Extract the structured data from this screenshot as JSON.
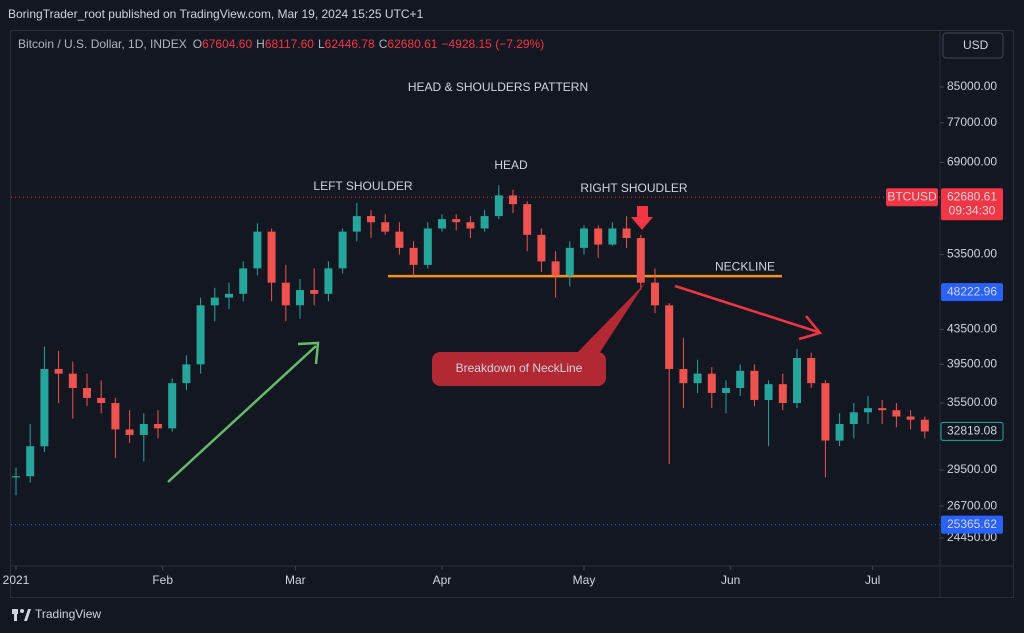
{
  "header": {
    "publisher": "BoringTrader_root published on TradingView.com, Mar 19, 2024 15:25 UTC+1"
  },
  "footer": {
    "brand": "TradingView"
  },
  "chart_data": {
    "type": "candlestick",
    "title": "HEAD & SHOULDERS PATTERN",
    "symbol": "Bitcoin / U.S. Dollar, 1D, INDEX",
    "ohlc_legend": [
      {
        "key": "O",
        "value": "67604.60"
      },
      {
        "key": "H",
        "value": "68117.60"
      },
      {
        "key": "L",
        "value": "62446.78"
      },
      {
        "key": "C",
        "value": "62680.61"
      },
      {
        "key": "",
        "value": "−4928.15 (−7.29%)"
      }
    ],
    "currency": "USD",
    "up_color": "#26a69a",
    "down_color": "#ef5350",
    "log_scale": true,
    "candles": {
      "open": [
        28900,
        29000,
        31500,
        39000,
        38500,
        37000,
        36000,
        35500,
        33000,
        32500,
        33500,
        33100,
        37500,
        39500,
        46500,
        47500,
        48000,
        51500,
        57000,
        49500,
        46500,
        48500,
        48000,
        51500,
        57000,
        59500,
        58500,
        57000,
        54500,
        52000,
        57500,
        59000,
        58500,
        57500,
        59500,
        63000,
        61500,
        56500,
        52500,
        50500,
        54500,
        57500,
        55000,
        57500,
        56000,
        49500,
        46500,
        39000,
        37500,
        38500,
        36500,
        37000,
        38800,
        35800,
        37400,
        35500,
        40200,
        37500,
        32000,
        33500,
        34600,
        35000,
        34800,
        34200,
        33900
      ],
      "high": [
        29700,
        33500,
        41500,
        41000,
        39800,
        38500,
        37800,
        36000,
        34800,
        34500,
        34800,
        38000,
        40500,
        47500,
        48800,
        49500,
        52500,
        58300,
        57500,
        52000,
        50000,
        51500,
        52500,
        57500,
        61700,
        60500,
        59800,
        58500,
        55500,
        58500,
        59800,
        59800,
        59500,
        60500,
        64800,
        64000,
        62000,
        57500,
        54000,
        55500,
        58000,
        58000,
        58500,
        59500,
        56500,
        51500,
        46800,
        42500,
        40000,
        39200,
        37800,
        39500,
        39500,
        37800,
        38500,
        41200,
        40800,
        37800,
        34500,
        35500,
        36200,
        35800,
        35500,
        34800,
        34200
      ],
      "low": [
        27500,
        28500,
        31000,
        35500,
        34000,
        35200,
        34500,
        30500,
        31800,
        30200,
        32200,
        32800,
        36800,
        38500,
        44500,
        46000,
        47000,
        50500,
        47000,
        44500,
        44800,
        46500,
        47000,
        50800,
        55500,
        56000,
        56500,
        53500,
        50500,
        51500,
        57000,
        57200,
        56000,
        57000,
        59000,
        60000,
        54000,
        51000,
        47500,
        49000,
        53500,
        53000,
        54800,
        54500,
        48500,
        45500,
        30000,
        35000,
        36500,
        35000,
        34500,
        36200,
        35200,
        31500,
        34800,
        35000,
        37000,
        28900,
        31500,
        32200,
        33500,
        33500,
        33200,
        33000,
        32200
      ],
      "close": [
        29000,
        31500,
        39000,
        38500,
        37000,
        36000,
        35500,
        33000,
        32500,
        33500,
        33100,
        37500,
        39500,
        46500,
        47500,
        48000,
        51500,
        57000,
        49500,
        46500,
        48500,
        48000,
        51500,
        57000,
        59500,
        58500,
        57000,
        54500,
        52000,
        57500,
        59000,
        58500,
        57500,
        59500,
        63000,
        61500,
        56500,
        52500,
        50500,
        54500,
        57500,
        55000,
        57500,
        56000,
        49500,
        46500,
        39000,
        37500,
        38500,
        36500,
        37000,
        38800,
        35800,
        37400,
        35500,
        40200,
        37500,
        32000,
        33500,
        34600,
        35000,
        34800,
        34200,
        33900,
        32819.08
      ]
    },
    "xticks": [
      {
        "value": 0,
        "label": "2021"
      },
      {
        "value": 10.33,
        "label": "Feb"
      },
      {
        "value": 19.67,
        "label": "Mar"
      },
      {
        "value": 30,
        "label": "Apr"
      },
      {
        "value": 40,
        "label": "May"
      },
      {
        "value": 50.33,
        "label": "Jun"
      },
      {
        "value": 60.33,
        "label": "Jul"
      }
    ],
    "ylim": [
      22690,
      99500
    ],
    "yticks": [
      {
        "value": 85000,
        "label": "85000.00"
      },
      {
        "value": 77000,
        "label": "77000.00"
      },
      {
        "value": 69000,
        "label": "69000.00"
      },
      {
        "value": 53500,
        "label": "53500.00"
      },
      {
        "value": 43500,
        "label": "43500.00"
      },
      {
        "value": 39500,
        "label": "39500.00"
      },
      {
        "value": 35500,
        "label": "35500.00"
      },
      {
        "value": 29500,
        "label": "29500.00"
      },
      {
        "value": 26700,
        "label": "26700.00"
      },
      {
        "value": 24450,
        "label": "24450.00"
      }
    ],
    "neckline": {
      "label": "NECKLINE",
      "value": 50400,
      "color": "#f7931a"
    },
    "annotations": {
      "head": "HEAD",
      "left_shoulder": "LEFT SHOULDER",
      "right_shoulder": "RIGHT SHOUDLER",
      "breakdown": "Breakdown of NeckLine"
    },
    "price_labels": [
      {
        "value": 62680.61,
        "symbol": "BTCUSD",
        "time": "09:34:30",
        "color": "#f23645",
        "dotted_line": true
      },
      {
        "value": 48222.96,
        "color": "#2962ff",
        "dotted_line": false
      },
      {
        "value": 32819.08,
        "color": "#26a69a",
        "outlined": true,
        "dotted_line": false
      },
      {
        "value": 25365.62,
        "color": "#2962ff",
        "dotted_line": true
      }
    ]
  }
}
